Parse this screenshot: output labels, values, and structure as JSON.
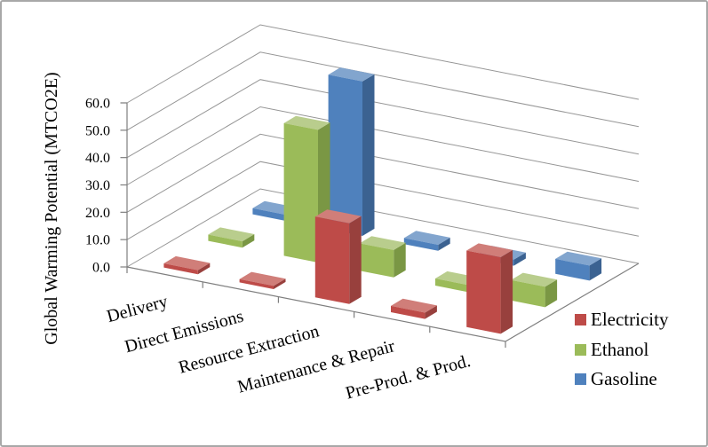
{
  "chart_data": {
    "type": "bar",
    "projection": "3d",
    "title": "",
    "ylabel": "Global Warming Potential (MTCO2E)",
    "xlabel": "",
    "ylim": [
      0,
      60
    ],
    "y_tick_step": 10,
    "y_ticks": [
      "0.0",
      "10.0",
      "20.0",
      "30.0",
      "40.0",
      "50.0",
      "60.0"
    ],
    "grid": true,
    "legend_position": "right-bottom",
    "categories": [
      "Delivery",
      "Direct Emissions",
      "Resource Extraction",
      "Maintenance & Repair",
      "Pre-Prod. & Prod."
    ],
    "series": [
      {
        "name": "Electricity",
        "values": [
          1.5,
          1.2,
          29.5,
          2.3,
          28.0
        ],
        "color": {
          "front": "#BE4B48",
          "top": "#D07E79",
          "side": "#98403D"
        }
      },
      {
        "name": "Ethanol",
        "values": [
          2.3,
          48.5,
          10.0,
          2.6,
          7.5
        ],
        "color": {
          "front": "#9BBB59",
          "top": "#B9CD8D",
          "side": "#7A9744"
        }
      },
      {
        "name": "Gasoline",
        "values": [
          2.2,
          56.5,
          2.2,
          2.2,
          5.5
        ],
        "color": {
          "front": "#4F81BD",
          "top": "#82A5CE",
          "side": "#3B6291"
        }
      }
    ],
    "colors": {
      "gridline": "#969696",
      "axis": "#7f7f7f",
      "text": "#000000",
      "background": "#ffffff",
      "frame_border": "#a8a8a8"
    }
  }
}
